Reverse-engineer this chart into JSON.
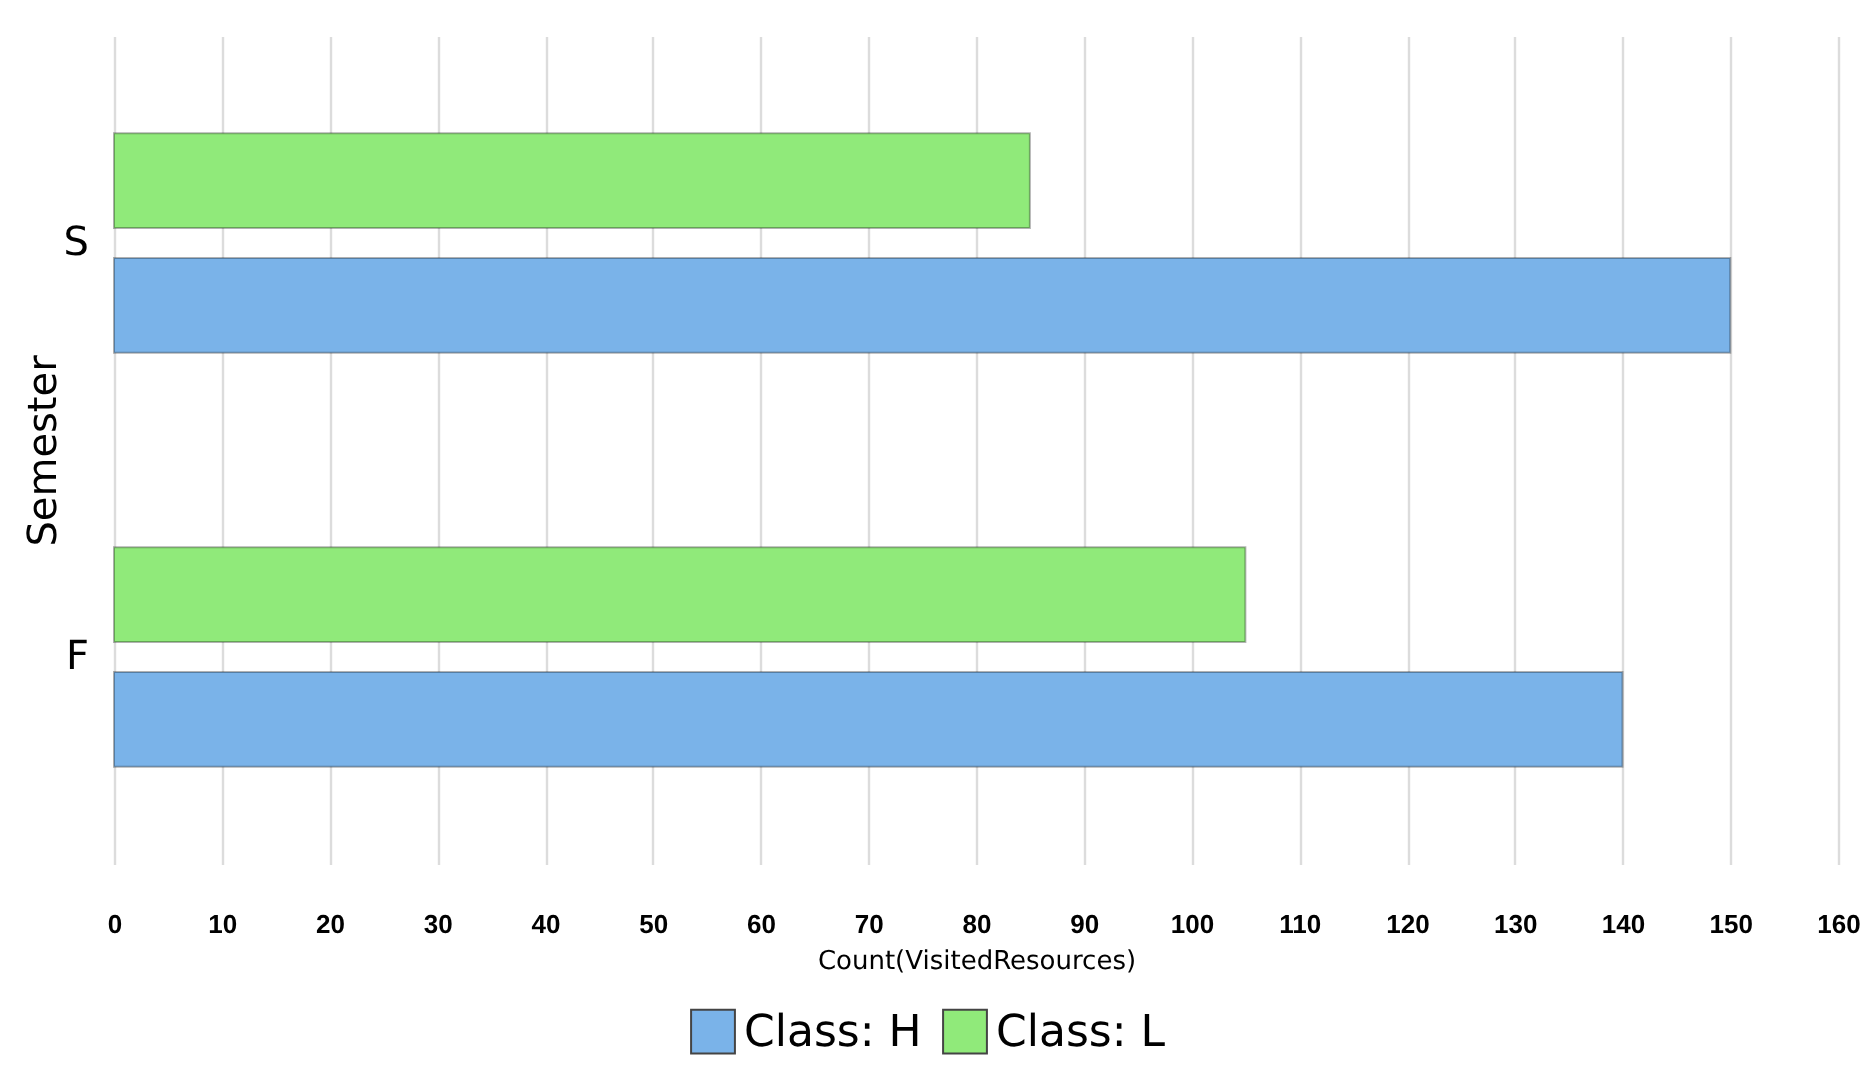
{
  "chart_data": {
    "type": "bar",
    "orientation": "horizontal",
    "categories": [
      "S",
      "F"
    ],
    "series": [
      {
        "name": "Class: H",
        "color": "#7ab3e9",
        "values": [
          150,
          140
        ]
      },
      {
        "name": "Class: L",
        "color": "#90ea7a",
        "values": [
          85,
          105
        ]
      }
    ],
    "xlabel": "Count(VisitedResources)",
    "ylabel": "Semester",
    "xlim": [
      0,
      160
    ],
    "xticks": [
      0,
      10,
      20,
      30,
      40,
      50,
      60,
      70,
      80,
      90,
      100,
      110,
      120,
      130,
      140,
      150,
      160
    ],
    "grid": "x",
    "legend": "bottom"
  }
}
